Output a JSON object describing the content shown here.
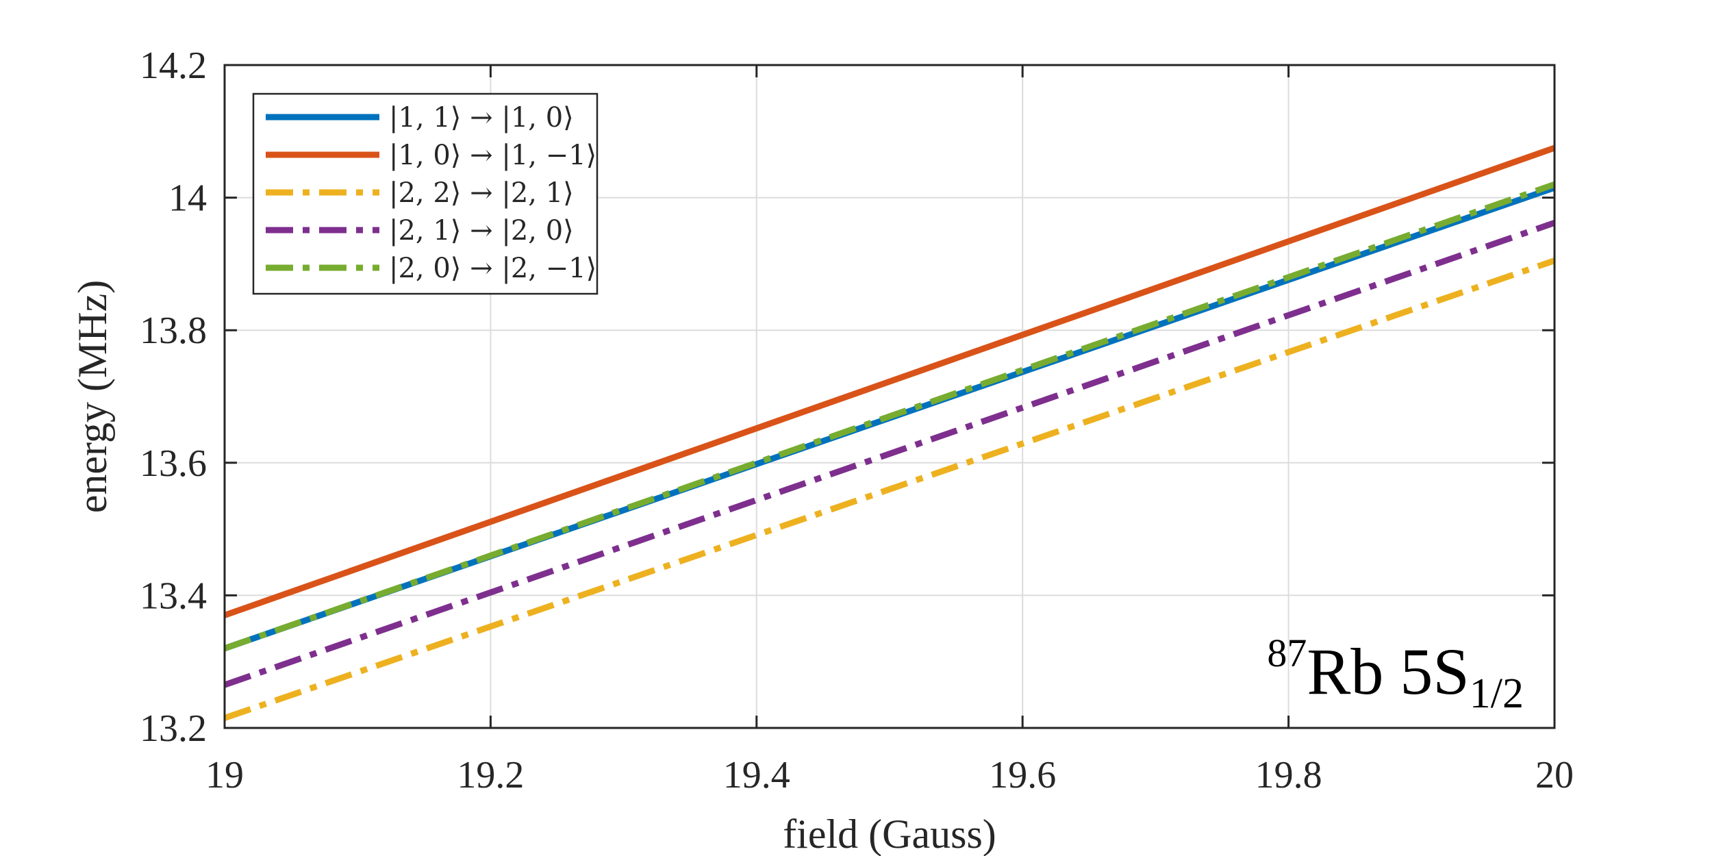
{
  "chart_data": {
    "type": "line",
    "title": "",
    "xlabel": "field (Gauss)",
    "ylabel": "energy (MHz)",
    "xlim": [
      19,
      20
    ],
    "ylim": [
      13.2,
      14.2
    ],
    "xticks": [
      19,
      19.2,
      19.4,
      19.6,
      19.8,
      20
    ],
    "xtick_labels": [
      "19",
      "19.2",
      "19.4",
      "19.6",
      "19.8",
      "20"
    ],
    "yticks": [
      13.2,
      13.4,
      13.6,
      13.8,
      14,
      14.2
    ],
    "ytick_labels": [
      "13.2",
      "13.4",
      "13.6",
      "13.8",
      "14",
      "14.2"
    ],
    "grid": true,
    "legend_position": "top-left",
    "annotation": {
      "iso": "87",
      "element": "Rb 5S",
      "subscript": "1/2"
    },
    "series": [
      {
        "name": "|1, 1⟩ → |1, 0⟩",
        "x": [
          19,
          20
        ],
        "y": [
          13.32,
          14.015
        ],
        "color": "#0072BD",
        "style": "solid"
      },
      {
        "name": "|1, 0⟩ → |1, −1⟩",
        "x": [
          19,
          20
        ],
        "y": [
          13.37,
          14.075
        ],
        "color": "#D95319",
        "style": "solid"
      },
      {
        "name": "|2, 2⟩ → |2, 1⟩",
        "x": [
          19,
          20
        ],
        "y": [
          13.215,
          13.905
        ],
        "color": "#EDB120",
        "style": "dashdot"
      },
      {
        "name": "|2, 1⟩ → |2, 0⟩",
        "x": [
          19,
          20
        ],
        "y": [
          13.265,
          13.962
        ],
        "color": "#7E2F8E",
        "style": "dashdot"
      },
      {
        "name": "|2, 0⟩ → |2, −1⟩",
        "x": [
          19,
          20
        ],
        "y": [
          13.32,
          14.02
        ],
        "color": "#77AC30",
        "style": "dashdot"
      }
    ]
  }
}
